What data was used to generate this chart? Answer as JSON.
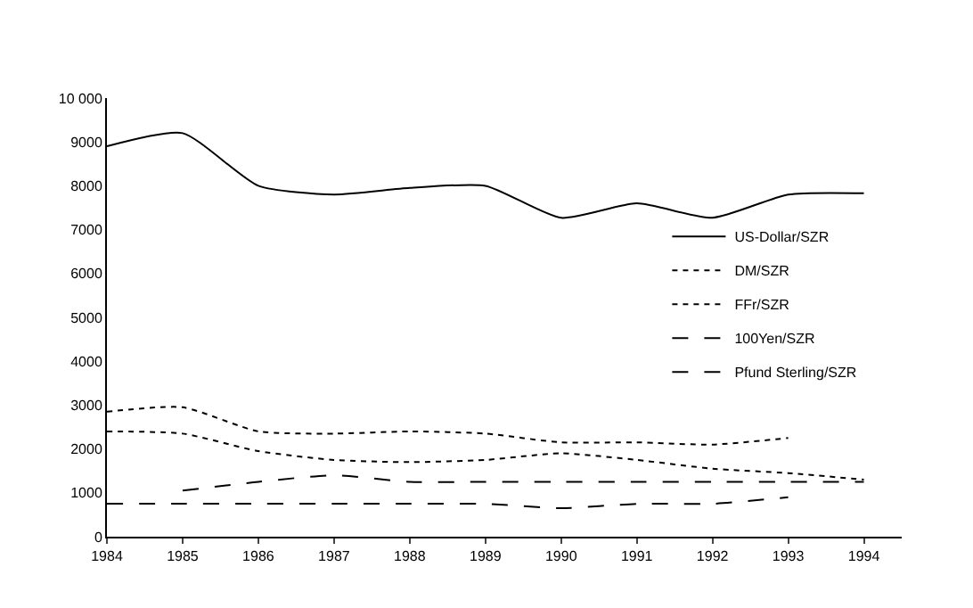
{
  "chart_data": {
    "type": "line",
    "x": [
      1984,
      1985,
      1986,
      1987,
      1988,
      1989,
      1990,
      1991,
      1992,
      1993,
      1994
    ],
    "xlim": [
      1984,
      1994.5
    ],
    "xticks": [
      1984,
      1985,
      1986,
      1987,
      1988,
      1989,
      1990,
      1991,
      1992,
      1993,
      1994
    ],
    "ylim": [
      0,
      10000
    ],
    "yticks": [
      0,
      1000,
      2000,
      3000,
      4000,
      5000,
      6000,
      7000,
      8000,
      9000,
      {
        "value": 10000,
        "label": "10 000"
      }
    ],
    "legend": "right",
    "marker": "none",
    "series": [
      {
        "name": "US-Dollar/SZR",
        "color": "#000000",
        "line_style": "solid",
        "values": [
          8900,
          9200,
          8000,
          7800,
          7950,
          8000,
          7270,
          7600,
          7270,
          7800,
          7830
        ]
      },
      {
        "name": "DM/SZR",
        "color": "#000000",
        "line_style": "dotted",
        "values": [
          2850,
          2950,
          2400,
          2350,
          2400,
          2350,
          2150,
          2150,
          2100,
          2250,
          null
        ]
      },
      {
        "name": "FFr/SZR",
        "color": "#000000",
        "line_style": "dotted",
        "values": [
          2400,
          2350,
          1950,
          1750,
          1700,
          1750,
          1900,
          1750,
          1550,
          1450,
          1300
        ]
      },
      {
        "name": "100Yen/SZR",
        "color": "#000000",
        "line_style": "dashed",
        "values": [
          null,
          1050,
          1250,
          1400,
          1250,
          1250,
          1250,
          1250,
          1250,
          1250,
          1250
        ]
      },
      {
        "name": "Pfund Sterling/SZR",
        "color": "#000000",
        "line_style": "dashed",
        "values": [
          750,
          750,
          750,
          750,
          750,
          750,
          650,
          750,
          750,
          900,
          null
        ]
      }
    ]
  }
}
